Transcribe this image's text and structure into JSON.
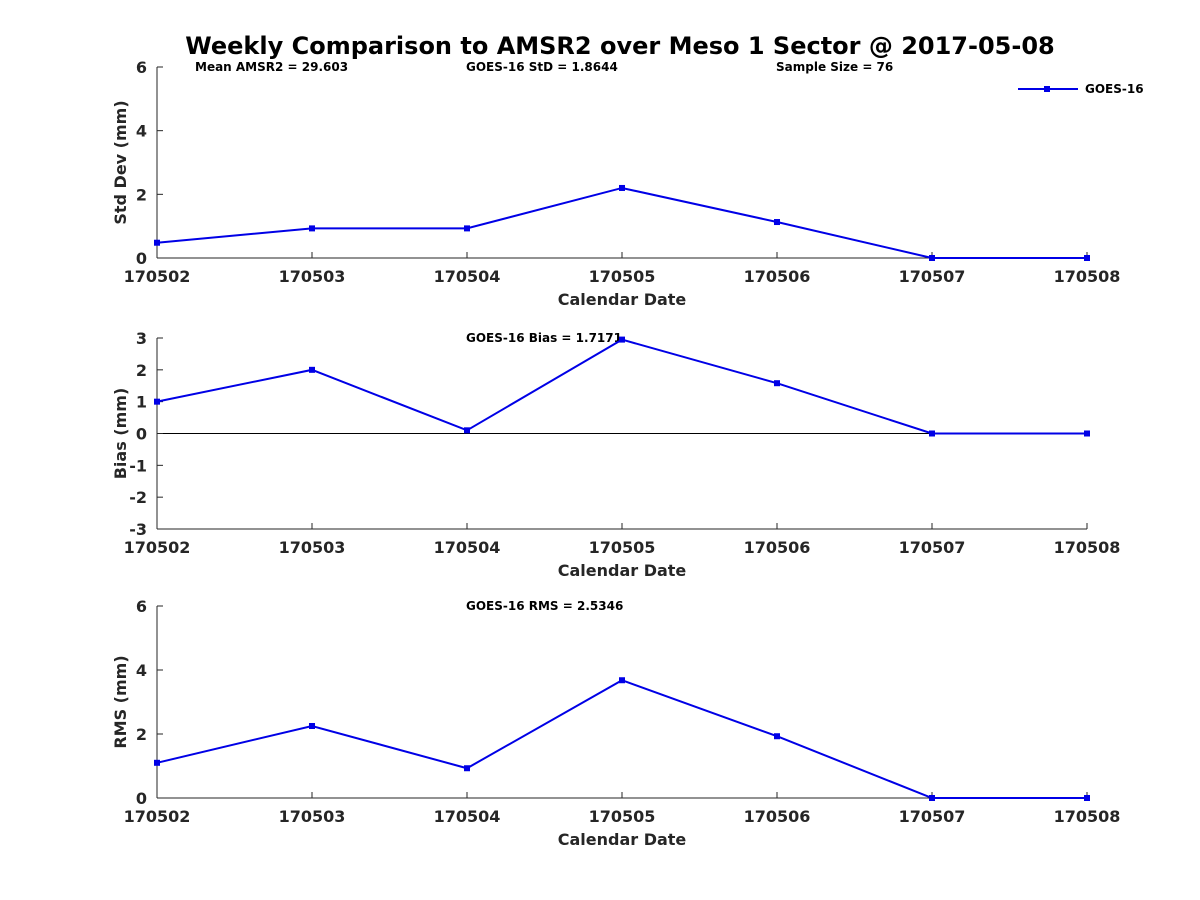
{
  "title": "Weekly Comparison to AMSR2 over Meso 1 Sector @ 2017-05-08",
  "legend": {
    "label": "GOES-16",
    "color": "#0000e6"
  },
  "chart_data": [
    {
      "type": "line",
      "panel": "stddev",
      "categories": [
        "170502",
        "170503",
        "170504",
        "170505",
        "170506",
        "170507",
        "170508"
      ],
      "series": [
        {
          "name": "GOES-16",
          "values": [
            0.48,
            0.93,
            0.93,
            2.2,
            1.13,
            0.0,
            0.0
          ]
        }
      ],
      "xlabel": "Calendar Date",
      "ylabel": "Std Dev (mm)",
      "ylim": [
        0,
        6
      ],
      "yticks": [
        "0",
        "2",
        "4",
        "6"
      ],
      "annotations": [
        "Mean AMSR2 = 29.603",
        "GOES-16 StD = 1.8644",
        "Sample Size = 76"
      ],
      "zero_line": false
    },
    {
      "type": "line",
      "panel": "bias",
      "categories": [
        "170502",
        "170503",
        "170504",
        "170505",
        "170506",
        "170507",
        "170508"
      ],
      "series": [
        {
          "name": "GOES-16",
          "values": [
            1.0,
            2.0,
            0.1,
            2.95,
            1.58,
            0.0,
            0.0
          ]
        }
      ],
      "xlabel": "Calendar Date",
      "ylabel": "Bias (mm)",
      "ylim": [
        -3,
        3
      ],
      "yticks": [
        "-3",
        "-2",
        "-1",
        "0",
        "1",
        "2",
        "3"
      ],
      "annotations": [
        "GOES-16 Bias  = 1.7171"
      ],
      "zero_line": true
    },
    {
      "type": "line",
      "panel": "rms",
      "categories": [
        "170502",
        "170503",
        "170504",
        "170505",
        "170506",
        "170507",
        "170508"
      ],
      "series": [
        {
          "name": "GOES-16",
          "values": [
            1.1,
            2.25,
            0.93,
            3.68,
            1.93,
            0.0,
            0.0
          ]
        }
      ],
      "xlabel": "Calendar Date",
      "ylabel": "RMS (mm)",
      "ylim": [
        0,
        6
      ],
      "yticks": [
        "0",
        "2",
        "4",
        "6"
      ],
      "annotations": [
        "GOES-16 RMS = 2.5346"
      ],
      "zero_line": false
    }
  ]
}
